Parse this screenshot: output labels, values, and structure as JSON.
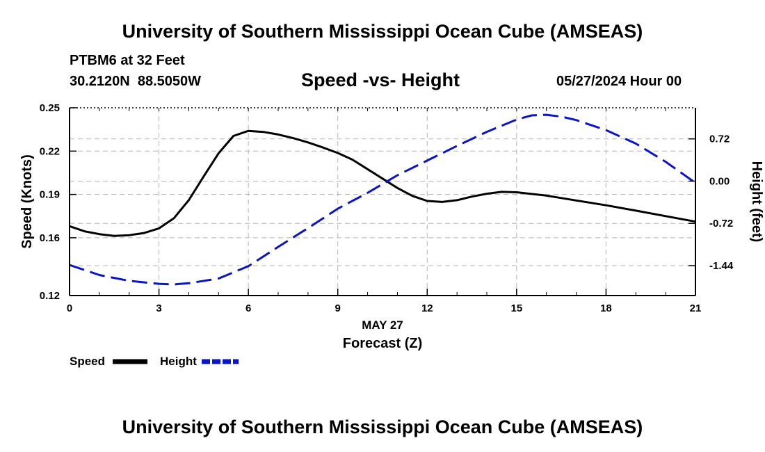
{
  "header": {
    "title": "University of Southern Mississippi Ocean Cube (AMSEAS)",
    "station": "PTBM6 at 32 Feet",
    "coords": "30.2120N  88.5050W",
    "date": "05/27/2024 Hour 00"
  },
  "footer": {
    "title": "University of Southern Mississippi Ocean Cube (AMSEAS)"
  },
  "chart_data": {
    "type": "line",
    "title": "Speed -vs- Height",
    "xlabel": "Forecast (Z)",
    "xsublabel": "MAY 27",
    "ylabel": "Speed (Knots)",
    "y2label": "Height (feet)",
    "xlim": [
      0,
      21
    ],
    "ylim": [
      0.12,
      0.25
    ],
    "y2lim": [
      -1.95,
      1.25
    ],
    "x_ticks": [
      "0",
      "3",
      "6",
      "9",
      "12",
      "15",
      "18",
      "21"
    ],
    "y_ticks": [
      "0.12",
      "0.16",
      "0.19",
      "0.22",
      "0.25"
    ],
    "y2_ticks": [
      "-1.44",
      "-0.72",
      "0.00",
      "0.72"
    ],
    "grid": true,
    "legend_position": "bottom-left",
    "colors": {
      "speed": "#000000",
      "height": "#0a14c8",
      "grid": "#b4b4b4"
    },
    "series": [
      {
        "name": "Speed",
        "axis": "left",
        "style": "solid",
        "x": [
          0,
          0.5,
          1,
          1.5,
          2,
          2.5,
          3,
          3.5,
          4,
          4.5,
          5,
          5.5,
          6,
          6.5,
          7,
          7.5,
          8,
          8.5,
          9,
          9.5,
          10,
          10.5,
          11,
          11.5,
          12,
          12.5,
          13,
          13.5,
          14,
          14.5,
          15,
          16,
          17,
          18,
          19,
          20,
          21
        ],
        "values": [
          0.168,
          0.1645,
          0.1625,
          0.1613,
          0.1618,
          0.1633,
          0.1665,
          0.1735,
          0.186,
          0.2025,
          0.2185,
          0.2305,
          0.234,
          0.2333,
          0.2315,
          0.229,
          0.226,
          0.2225,
          0.2187,
          0.214,
          0.2075,
          0.201,
          0.1945,
          0.189,
          0.1855,
          0.1848,
          0.186,
          0.1885,
          0.1905,
          0.1918,
          0.1915,
          0.1892,
          0.1858,
          0.1825,
          0.1788,
          0.175,
          0.1712
        ]
      },
      {
        "name": "Height",
        "axis": "right",
        "style": "dashed",
        "x": [
          0,
          1,
          2,
          3,
          3.5,
          4,
          5,
          6,
          7,
          8,
          9,
          10,
          11,
          12,
          13,
          14,
          15,
          15.5,
          16,
          16.5,
          17,
          18,
          19,
          20,
          21
        ],
        "values": [
          -1.43,
          -1.6,
          -1.7,
          -1.75,
          -1.76,
          -1.74,
          -1.66,
          -1.45,
          -1.12,
          -0.8,
          -0.47,
          -0.2,
          0.1,
          0.35,
          0.6,
          0.84,
          1.05,
          1.12,
          1.13,
          1.1,
          1.04,
          0.87,
          0.64,
          0.33,
          -0.03
        ]
      }
    ]
  }
}
